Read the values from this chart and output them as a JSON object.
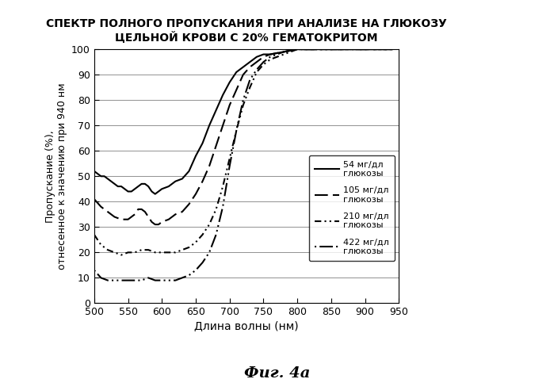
{
  "title": "СПЕКТР ПОЛНОГО ПРОПУСКАНИЯ ПРИ АНАЛИЗЕ НА ГЛЮКОЗУ\nЦЕЛЬНОЙ КРОВИ С 20% ГЕМАТОКРИТОМ",
  "xlabel": "Длина волны (нм)",
  "ylabel": "Пропускание (%),\nотнесенное к значению при 940 нм",
  "fig_label": "Фиг. 4а",
  "xlim": [
    500,
    950
  ],
  "ylim": [
    0,
    100
  ],
  "xticks": [
    500,
    550,
    600,
    650,
    700,
    750,
    800,
    850,
    900,
    950
  ],
  "yticks": [
    0,
    10,
    20,
    30,
    40,
    50,
    60,
    70,
    80,
    90,
    100
  ],
  "legend_labels": [
    "54 мг/дл\nглюкозы",
    "105 мг/дл\nглюкозы",
    "210 мг/дл\nглюкозы",
    "422 мг/дл\nглюкозы"
  ],
  "curve_54": {
    "x": [
      500,
      510,
      515,
      520,
      525,
      530,
      535,
      540,
      545,
      550,
      555,
      560,
      565,
      570,
      575,
      580,
      585,
      590,
      595,
      600,
      610,
      620,
      630,
      640,
      650,
      660,
      670,
      680,
      690,
      700,
      710,
      720,
      730,
      740,
      750,
      760,
      780,
      800,
      850,
      900,
      940
    ],
    "y": [
      52,
      50,
      50,
      49,
      48,
      47,
      46,
      46,
      45,
      44,
      44,
      45,
      46,
      47,
      47,
      46,
      44,
      43,
      44,
      45,
      46,
      48,
      49,
      52,
      58,
      63,
      70,
      76,
      82,
      87,
      91,
      93,
      95,
      97,
      98,
      98,
      99,
      100,
      100,
      100,
      100
    ]
  },
  "curve_105": {
    "x": [
      500,
      510,
      520,
      530,
      540,
      550,
      555,
      560,
      565,
      570,
      575,
      580,
      585,
      590,
      595,
      600,
      610,
      620,
      630,
      640,
      650,
      660,
      670,
      680,
      690,
      700,
      710,
      720,
      730,
      740,
      750,
      760,
      780,
      800,
      850,
      900,
      940
    ],
    "y": [
      41,
      38,
      36,
      34,
      33,
      33,
      34,
      35,
      37,
      37,
      36,
      34,
      32,
      31,
      31,
      32,
      33,
      35,
      36,
      39,
      43,
      48,
      54,
      62,
      70,
      78,
      84,
      90,
      93,
      95,
      97,
      98,
      99,
      100,
      100,
      100,
      100
    ]
  },
  "curve_210": {
    "x": [
      500,
      510,
      520,
      530,
      540,
      550,
      560,
      570,
      580,
      590,
      600,
      610,
      620,
      630,
      640,
      650,
      660,
      670,
      680,
      690,
      700,
      710,
      720,
      730,
      740,
      750,
      760,
      780,
      800,
      850,
      900,
      940
    ],
    "y": [
      27,
      23,
      21,
      20,
      19,
      20,
      20,
      21,
      21,
      20,
      20,
      20,
      20,
      21,
      22,
      24,
      27,
      31,
      37,
      46,
      57,
      68,
      78,
      85,
      91,
      94,
      96,
      98,
      100,
      100,
      100,
      100
    ]
  },
  "curve_422": {
    "x": [
      500,
      510,
      520,
      530,
      540,
      550,
      560,
      570,
      580,
      590,
      600,
      610,
      620,
      630,
      640,
      650,
      660,
      670,
      680,
      690,
      700,
      710,
      720,
      730,
      740,
      750,
      760,
      780,
      800,
      850,
      900,
      940
    ],
    "y": [
      13,
      10,
      9,
      9,
      9,
      9,
      9,
      9,
      10,
      9,
      9,
      9,
      9,
      10,
      11,
      13,
      16,
      20,
      27,
      38,
      54,
      68,
      80,
      88,
      92,
      95,
      97,
      99,
      100,
      100,
      100,
      100
    ]
  }
}
